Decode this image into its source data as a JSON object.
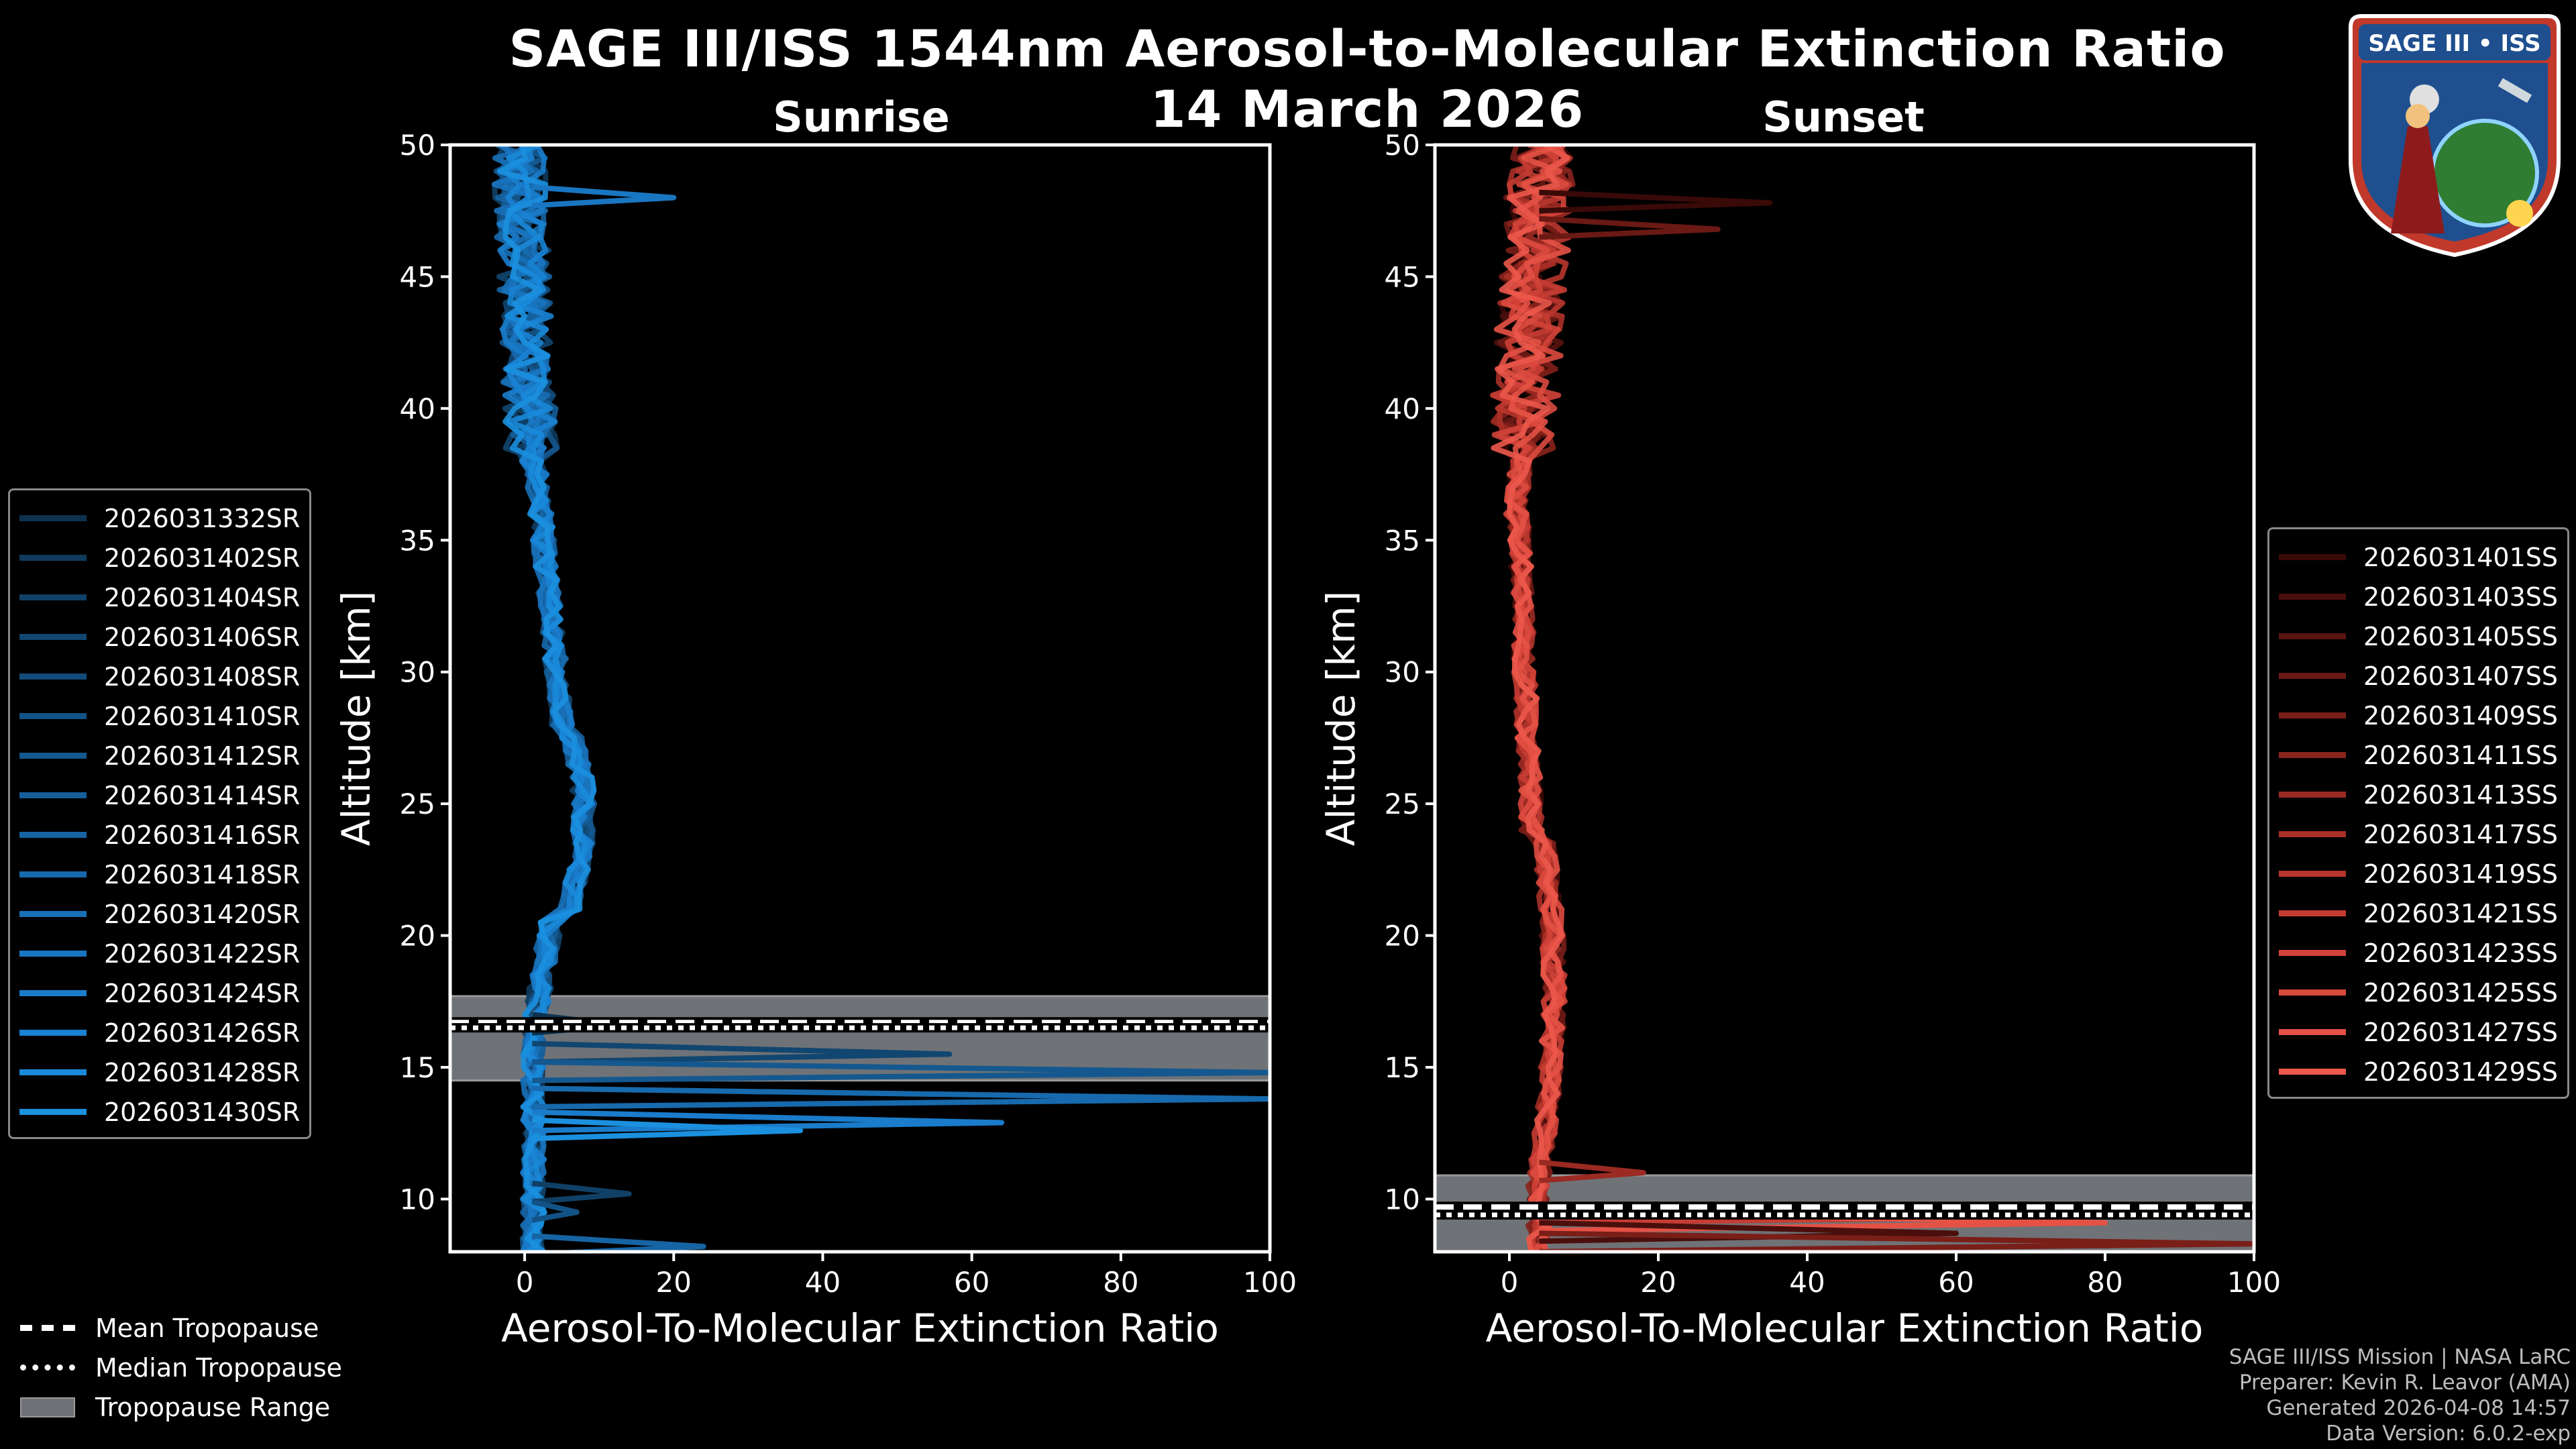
{
  "title": "SAGE III/ISS 1544nm Aerosol-to-Molecular Extinction Ratio",
  "date": "14 March 2026",
  "logo_text": "SAGE III • ISS",
  "colors": {
    "sunrise": "#1a8fd6",
    "sunset": "#e8564a",
    "tropopause_fill": "#6f7276"
  },
  "chart_data": [
    {
      "type": "line",
      "title": "Sunrise",
      "xlabel": "Aerosol-To-Molecular Extinction Ratio",
      "ylabel": "Altitude [km]",
      "xlim": [
        -10,
        100
      ],
      "ylim": [
        8,
        50
      ],
      "xticks": [
        0,
        20,
        40,
        60,
        80,
        100
      ],
      "yticks": [
        10,
        15,
        20,
        25,
        30,
        35,
        40,
        45,
        50
      ],
      "tropopause": {
        "mean": 16.7,
        "median": 16.5,
        "range": [
          14.5,
          17.7
        ]
      },
      "series": [
        {
          "name": "2026031332SR",
          "color": "#0e3350"
        },
        {
          "name": "2026031402SR",
          "color": "#0f3a5c"
        },
        {
          "name": "2026031404SR",
          "color": "#104066"
        },
        {
          "name": "2026031406SR",
          "color": "#114670"
        },
        {
          "name": "2026031408SR",
          "color": "#124c7b"
        },
        {
          "name": "2026031410SR",
          "color": "#135285"
        },
        {
          "name": "2026031412SR",
          "color": "#14588f"
        },
        {
          "name": "2026031414SR",
          "color": "#155e99"
        },
        {
          "name": "2026031416SR",
          "color": "#1664a3"
        },
        {
          "name": "2026031418SR",
          "color": "#176aad"
        },
        {
          "name": "2026031420SR",
          "color": "#1870b7"
        },
        {
          "name": "2026031422SR",
          "color": "#1976c1"
        },
        {
          "name": "2026031424SR",
          "color": "#1a7ccb"
        },
        {
          "name": "2026031426SR",
          "color": "#1a82d3"
        },
        {
          "name": "2026031428SR",
          "color": "#1a89d9"
        },
        {
          "name": "2026031430SR",
          "color": "#1b90df"
        }
      ],
      "spikes": [
        {
          "alt": 16.6,
          "value": 13
        },
        {
          "alt": 15.5,
          "value": 57
        },
        {
          "alt": 14.8,
          "value": 100
        },
        {
          "alt": 13.8,
          "value": 100
        },
        {
          "alt": 12.9,
          "value": 64
        },
        {
          "alt": 12.6,
          "value": 37
        },
        {
          "alt": 10.2,
          "value": 14
        },
        {
          "alt": 9.5,
          "value": 7
        },
        {
          "alt": 8.2,
          "value": 24
        },
        {
          "alt": 48,
          "value": 20
        }
      ]
    },
    {
      "type": "line",
      "title": "Sunset",
      "xlabel": "Aerosol-To-Molecular Extinction Ratio",
      "ylabel": "Altitude [km]",
      "xlim": [
        -10,
        100
      ],
      "ylim": [
        8,
        50
      ],
      "xticks": [
        0,
        20,
        40,
        60,
        80,
        100
      ],
      "yticks": [
        10,
        15,
        20,
        25,
        30,
        35,
        40,
        45,
        50
      ],
      "tropopause": {
        "mean": 9.7,
        "median": 9.4,
        "range": [
          8,
          10.9
        ]
      },
      "series": [
        {
          "name": "2026031401SS",
          "color": "#3a0a08"
        },
        {
          "name": "2026031403SS",
          "color": "#4a0f0c"
        },
        {
          "name": "2026031405SS",
          "color": "#5a1410"
        },
        {
          "name": "2026031407SS",
          "color": "#6a1914"
        },
        {
          "name": "2026031409SS",
          "color": "#7a1e18"
        },
        {
          "name": "2026031411SS",
          "color": "#8a241d"
        },
        {
          "name": "2026031413SS",
          "color": "#9a2a22"
        },
        {
          "name": "2026031417SS",
          "color": "#a93027"
        },
        {
          "name": "2026031419SS",
          "color": "#b8362d"
        },
        {
          "name": "2026031421SS",
          "color": "#c53c33"
        },
        {
          "name": "2026031423SS",
          "color": "#d14339"
        },
        {
          "name": "2026031425SS",
          "color": "#db4a3f"
        },
        {
          "name": "2026031427SS",
          "color": "#e45145"
        },
        {
          "name": "2026031429SS",
          "color": "#ec584b"
        }
      ],
      "spikes": [
        {
          "alt": 47.8,
          "value": 35
        },
        {
          "alt": 46.8,
          "value": 28
        },
        {
          "alt": 11.0,
          "value": 18
        },
        {
          "alt": 9.4,
          "value": 100
        },
        {
          "alt": 9.1,
          "value": 80
        },
        {
          "alt": 8.7,
          "value": 60
        },
        {
          "alt": 8.3,
          "value": 100
        }
      ]
    }
  ],
  "tropopause_legend": [
    "Mean Tropopause",
    "Median Tropopause",
    "Tropopause Range"
  ],
  "footer": [
    "SAGE III/ISS Mission | NASA LaRC",
    "Preparer: Kevin R. Leavor (AMA)",
    "Generated 2026-04-08 14:57",
    "Data Version: 6.0.2-exp"
  ]
}
